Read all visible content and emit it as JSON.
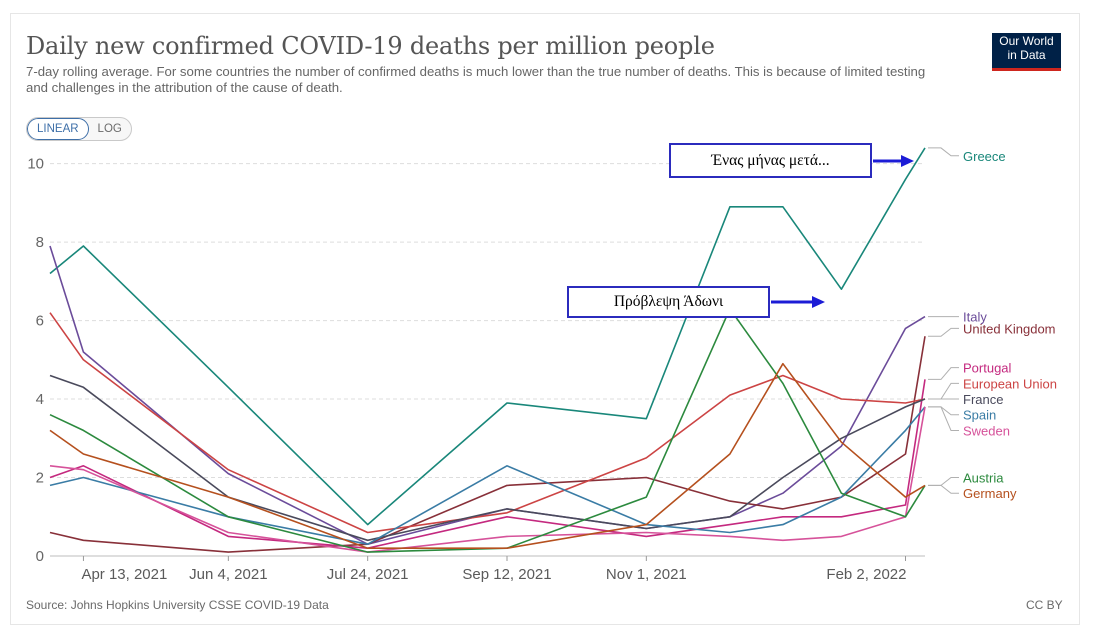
{
  "header": {
    "title": "Daily new confirmed COVID-19 deaths per million people",
    "subtitle": "7-day rolling average. For some countries the number of confirmed deaths is much lower than the true number of deaths. This is because of limited testing and challenges in the attribution of the cause of death."
  },
  "scale_toggle": {
    "linear": "LINEAR",
    "log": "LOG",
    "selected": "LINEAR"
  },
  "logo": {
    "line1": "Our World",
    "line2": "in Data",
    "bg_color": "#002147",
    "bar_color": "#ce261e"
  },
  "footer": {
    "source": "Source: Johns Hopkins University CSSE COVID-19 Data",
    "license": "CC BY"
  },
  "annotations": {
    "one_month": "Ένας μήνας μετά...",
    "prediction": "Πρόβλεψη Άδωνι",
    "arrow_color": "#1c1cd6"
  },
  "chart_data": {
    "type": "line",
    "y_scale": "linear",
    "ylim": [
      0,
      10.5
    ],
    "y_ticks": [
      0,
      2,
      4,
      6,
      8,
      10
    ],
    "x_ticks": [
      "Apr 13, 2021",
      "Jun 4, 2021",
      "Jul 24, 2021",
      "Sep 12, 2021",
      "Nov 1, 2021",
      "Feb 2, 2022"
    ],
    "x": [
      "Apr 1, 2021",
      "Apr 13, 2021",
      "Jun 4, 2021",
      "Jul 24, 2021",
      "Sep 12, 2021",
      "Nov 1, 2021",
      "Dec 1, 2021",
      "Dec 20, 2021",
      "Jan 10, 2022",
      "Feb 2, 2022",
      "Feb 9, 2022"
    ],
    "grid": "horizontal dashed",
    "series": [
      {
        "name": "Greece",
        "color": "#19877a",
        "label_y": 10.2,
        "values": [
          7.2,
          7.9,
          4.3,
          0.8,
          3.9,
          3.5,
          8.9,
          8.9,
          6.8,
          9.6,
          10.4
        ]
      },
      {
        "name": "Italy",
        "color": "#6b4c9a",
        "label_y": 6.1,
        "values": [
          7.9,
          5.2,
          2.1,
          0.3,
          1.2,
          0.7,
          1.0,
          1.6,
          2.8,
          5.8,
          6.1
        ]
      },
      {
        "name": "United Kingdom",
        "color": "#883039",
        "label_y": 5.8,
        "values": [
          0.6,
          0.4,
          0.1,
          0.3,
          1.8,
          2.0,
          1.4,
          1.2,
          1.5,
          2.6,
          5.6
        ]
      },
      {
        "name": "Portugal",
        "color": "#c4297f",
        "label_y": 4.8,
        "values": [
          2.0,
          2.3,
          0.5,
          0.2,
          1.0,
          0.5,
          0.8,
          1.0,
          1.0,
          1.3,
          4.5
        ]
      },
      {
        "name": "European Union",
        "color": "#cc4444",
        "label_y": 4.4,
        "values": [
          6.2,
          5.0,
          2.2,
          0.6,
          1.1,
          2.5,
          4.1,
          4.6,
          4.0,
          3.9,
          4.0
        ]
      },
      {
        "name": "France",
        "color": "#4a4a5c",
        "label_y": 4.0,
        "values": [
          4.6,
          4.3,
          1.5,
          0.4,
          1.2,
          0.7,
          1.0,
          2.0,
          3.0,
          3.8,
          4.0
        ]
      },
      {
        "name": "Spain",
        "color": "#3a7ca5",
        "label_y": 3.6,
        "values": [
          1.8,
          2.0,
          1.0,
          0.3,
          2.3,
          0.8,
          0.6,
          0.8,
          1.5,
          3.2,
          3.8
        ]
      },
      {
        "name": "Sweden",
        "color": "#d6529a",
        "label_y": 3.2,
        "values": [
          2.3,
          2.2,
          0.6,
          0.1,
          0.5,
          0.6,
          0.5,
          0.4,
          0.5,
          1.0,
          3.8
        ]
      },
      {
        "name": "Austria",
        "color": "#2c8a3e",
        "label_y": 2.0,
        "values": [
          3.6,
          3.2,
          1.0,
          0.1,
          0.2,
          1.5,
          6.3,
          4.4,
          1.6,
          1.0,
          1.8
        ]
      },
      {
        "name": "Germany",
        "color": "#b5501e",
        "label_y": 1.6,
        "values": [
          3.2,
          2.6,
          1.5,
          0.2,
          0.2,
          0.8,
          2.6,
          4.9,
          2.9,
          1.5,
          1.8
        ]
      }
    ]
  }
}
